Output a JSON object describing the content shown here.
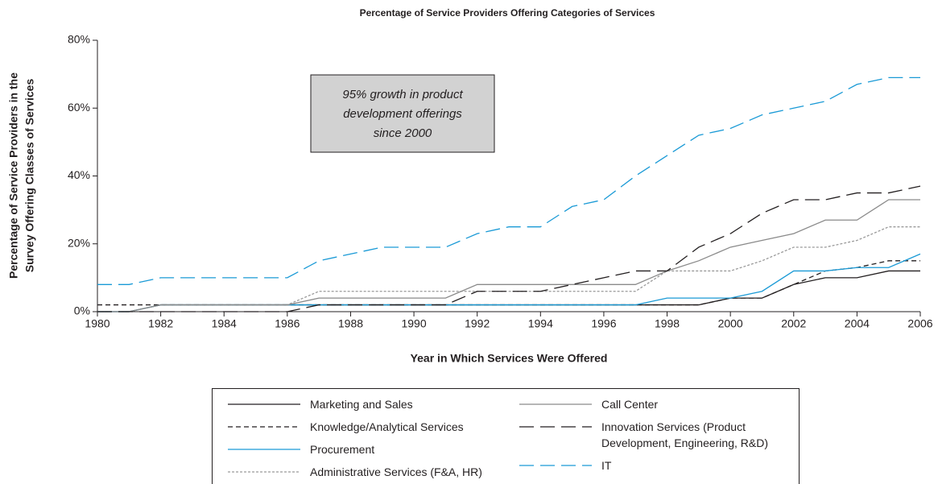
{
  "chart_data": {
    "type": "line",
    "title": "Percentage of Service Providers Offering Categories of Services",
    "x_label": "Year in Which Services Were Offered",
    "y_label": [
      "Percentage of Service Providers in the",
      "Survey Offering Classes of Services"
    ],
    "annotation": [
      "95% growth in product",
      "development offerings",
      "since 2000"
    ],
    "x": [
      1980,
      1981,
      1982,
      1983,
      1984,
      1985,
      1986,
      1987,
      1988,
      1989,
      1990,
      1991,
      1992,
      1993,
      1994,
      1995,
      1996,
      1997,
      1998,
      1999,
      2000,
      2001,
      2002,
      2003,
      2004,
      2005,
      2006
    ],
    "xlim": [
      1980,
      2006
    ],
    "xticks": [
      1980,
      1982,
      1984,
      1986,
      1988,
      1990,
      1992,
      1994,
      1996,
      1998,
      2000,
      2002,
      2004,
      2006
    ],
    "ylim": [
      0,
      80
    ],
    "yticks": [
      {
        "value": 0,
        "label": "0%"
      },
      {
        "value": 20,
        "label": "20%"
      },
      {
        "value": 40,
        "label": "40%"
      },
      {
        "value": 60,
        "label": "60%"
      },
      {
        "value": 80,
        "label": "80%"
      }
    ],
    "grid": false,
    "series": [
      {
        "name": "Marketing and Sales",
        "color": "#231f20",
        "dash": "solid",
        "values": [
          0,
          0,
          2,
          2,
          2,
          2,
          2,
          2,
          2,
          2,
          2,
          2,
          2,
          2,
          2,
          2,
          2,
          2,
          2,
          2,
          4,
          4,
          8,
          10,
          10,
          12,
          12
        ]
      },
      {
        "name": "Knowledge/Analytical Services",
        "color": "#231f20",
        "dash": "short-dash",
        "values": [
          2,
          2,
          2,
          2,
          2,
          2,
          2,
          2,
          2,
          2,
          2,
          2,
          2,
          2,
          2,
          2,
          2,
          2,
          2,
          2,
          4,
          4,
          8,
          12,
          13,
          15,
          15
        ]
      },
      {
        "name": "Procurement",
        "color": "#1a9ad6",
        "dash": "solid",
        "values": [
          0,
          0,
          2,
          2,
          2,
          2,
          2,
          2,
          2,
          2,
          2,
          2,
          2,
          2,
          2,
          2,
          2,
          2,
          4,
          4,
          4,
          6,
          12,
          12,
          13,
          13,
          17
        ]
      },
      {
        "name": "Administrative Services (F&A, HR)",
        "color": "#9a9a9a",
        "dash": "dotted",
        "values": [
          0,
          0,
          2,
          2,
          2,
          2,
          2,
          6,
          6,
          6,
          6,
          6,
          6,
          6,
          6,
          6,
          6,
          6,
          12,
          12,
          12,
          15,
          19,
          19,
          21,
          25,
          25
        ]
      },
      {
        "name": "Call Center",
        "color": "#8a8a8a",
        "dash": "solid",
        "values": [
          0,
          0,
          2,
          2,
          2,
          2,
          2,
          4,
          4,
          4,
          4,
          4,
          8,
          8,
          8,
          8,
          8,
          8,
          12,
          15,
          19,
          21,
          23,
          27,
          27,
          33,
          33
        ]
      },
      {
        "name": "Innovation Services (Product Development, Engineering, R&D)",
        "color": "#231f20",
        "dash": "long-dash",
        "values": [
          0,
          0,
          0,
          0,
          0,
          0,
          0,
          2,
          2,
          2,
          2,
          2,
          6,
          6,
          6,
          8,
          10,
          12,
          12,
          19,
          23,
          29,
          33,
          33,
          35,
          35,
          37
        ]
      },
      {
        "name": "IT",
        "color": "#1a9ad6",
        "dash": "long-dash",
        "values": [
          8,
          8,
          10,
          10,
          10,
          10,
          10,
          15,
          17,
          19,
          19,
          19,
          23,
          25,
          25,
          31,
          33,
          40,
          46,
          52,
          54,
          58,
          60,
          62,
          67,
          69,
          69
        ]
      }
    ]
  }
}
